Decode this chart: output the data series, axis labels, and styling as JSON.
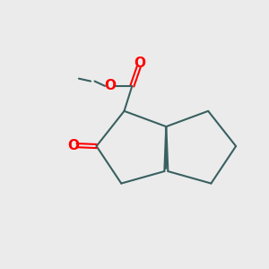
{
  "background_color": "#ebebeb",
  "bond_color": "#3a6060",
  "oxygen_color": "#ff0000",
  "bond_width": 1.5,
  "fig_size": [
    3.0,
    3.0
  ],
  "dpi": 100,
  "xlim": [
    0,
    10
  ],
  "ylim": [
    0,
    10
  ]
}
